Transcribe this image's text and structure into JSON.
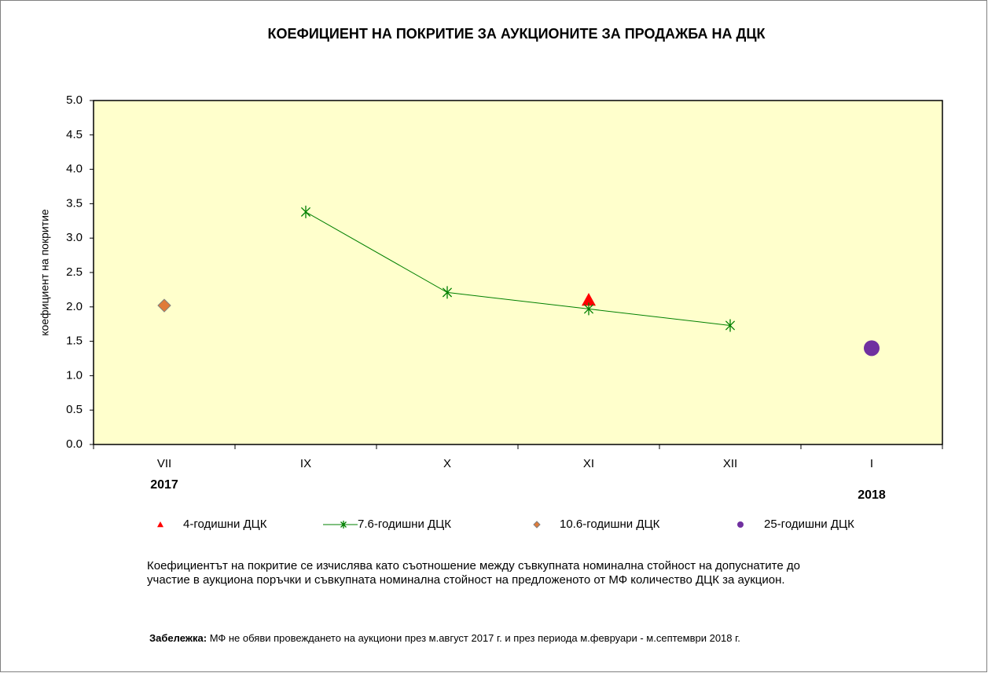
{
  "chart_data": {
    "type": "line",
    "title": "КОЕФИЦИЕНТ НА ПОКРИТИЕ ЗА АУКЦИОНИТЕ ЗА ПРОДАЖБА НА ДЦК",
    "y_label": "коефициент на покритие",
    "categories": [
      "VII",
      "IX",
      "X",
      "XI",
      "XII",
      "I"
    ],
    "year_labels": [
      "2017",
      null,
      null,
      null,
      null,
      "2018"
    ],
    "series": [
      {
        "name": "4-годишни ДЦК",
        "color": "#ff0000",
        "marker": "triangle",
        "line": false,
        "values": [
          null,
          null,
          null,
          2.1,
          null,
          null
        ]
      },
      {
        "name": "7.6-годишни ДЦК",
        "color": "#008000",
        "marker": "star",
        "line": true,
        "values": [
          null,
          3.38,
          2.21,
          1.97,
          1.73,
          null
        ]
      },
      {
        "name": "10.6-годишни ДЦК",
        "color": "#e07b39",
        "marker": "diamond",
        "line": false,
        "values": [
          2.02,
          null,
          null,
          null,
          null,
          null
        ]
      },
      {
        "name": "25-годишни ДЦК",
        "color": "#7030a0",
        "marker": "circle",
        "line": false,
        "values": [
          null,
          null,
          null,
          null,
          null,
          1.4
        ]
      }
    ],
    "ylim": [
      0,
      5
    ],
    "yticks": [
      {
        "value": 0,
        "label": "0.0"
      },
      0.5,
      {
        "value": 1,
        "label": "1.0"
      },
      1.5,
      {
        "value": 2,
        "label": "2.0"
      },
      2.5,
      {
        "value": 3,
        "label": "3.0"
      },
      3.5,
      {
        "value": 4,
        "label": "4.0"
      },
      4.5,
      {
        "value": 5,
        "label": "5.0"
      }
    ],
    "plot_background": "#ffffcc",
    "legend": "bottom",
    "footnote": "Коефициентът на покритие се изчислява като съотношение между съвкупната номинална стойност на допуснатите до участие в аукциона поръчки и съвкупната номинална стойност на предложеното от МФ количество ДЦК за аукцион.",
    "note_label": "Забележка:",
    "note_text": "МФ не обяви провеждането на аукциони през м.август 2017 г. и през периода  м.февруари  - м.септември 2018 г."
  }
}
